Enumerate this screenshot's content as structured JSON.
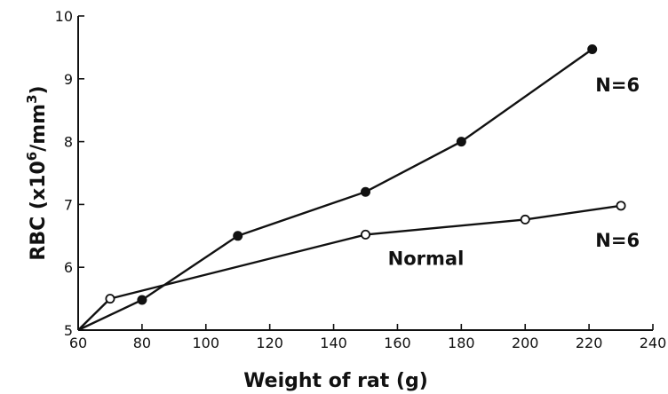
{
  "chart_data": {
    "type": "line",
    "title": "",
    "xlabel": "Weight of rat (g)",
    "ylabel_parts": [
      "RBC (x10",
      "6",
      "/mm",
      "3",
      ")"
    ],
    "xlim": [
      60,
      240
    ],
    "ylim": [
      5,
      10
    ],
    "x_ticks": [
      "60",
      "80",
      "100",
      "120",
      "140",
      "160",
      "180",
      "200",
      "220",
      "240"
    ],
    "y_ticks": [
      "5",
      "6",
      "7",
      "8",
      "9",
      "10"
    ],
    "grid": false,
    "legend": "none",
    "series": [
      {
        "marker": "filled",
        "color": "#111111",
        "x": [
          60,
          80,
          110,
          150,
          180,
          221
        ],
        "y": [
          5.0,
          5.48,
          6.5,
          7.2,
          8.0,
          9.47
        ]
      },
      {
        "marker": "open",
        "color": "#111111",
        "x": [
          60,
          70,
          150,
          200,
          230
        ],
        "y": [
          5.0,
          5.5,
          6.52,
          6.76,
          6.98
        ]
      }
    ],
    "annotations": [
      {
        "text": "N=6",
        "x": 222,
        "y": 8.8
      },
      {
        "text": "N=6",
        "x": 222,
        "y": 6.33
      },
      {
        "text": "Normal",
        "x": 157,
        "y": 6.04
      }
    ]
  }
}
